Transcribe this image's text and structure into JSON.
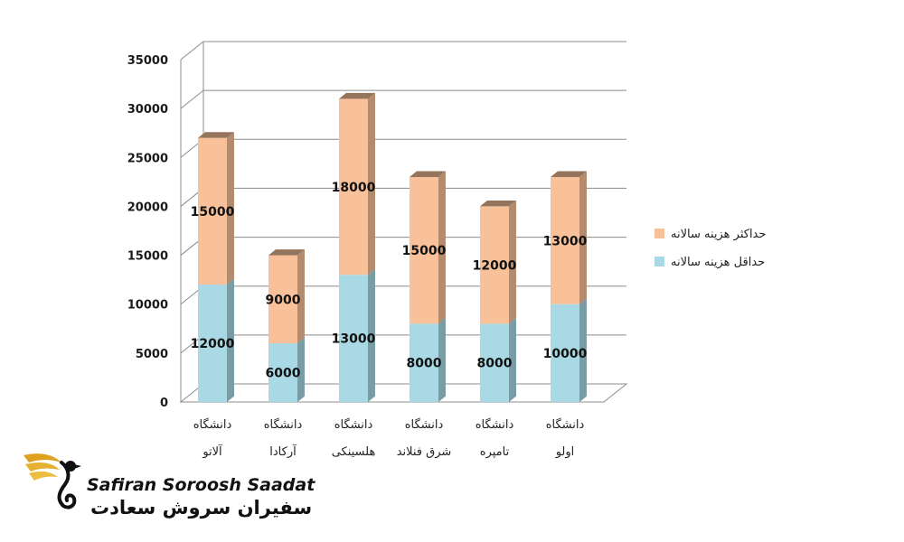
{
  "colors": {
    "min_series": "#a9d9e4",
    "max_series": "#f8c19a",
    "grid": "#8c8c8c",
    "brand_gold": "#e0a020"
  },
  "chart_data": {
    "type": "bar",
    "stacked": true,
    "three_d": true,
    "categories": [
      [
        "دانشگاه",
        "آلاتو"
      ],
      [
        "دانشگاه",
        "آرکادا"
      ],
      [
        "دانشگاه",
        "هلسینکی"
      ],
      [
        "دانشگاه",
        "شرق فنلاند"
      ],
      [
        "دانشگاه",
        "تامپره"
      ],
      [
        "دانشگاه",
        "اولو"
      ]
    ],
    "series": [
      {
        "name": "حداقل هزینه سالانه",
        "values": [
          12000,
          6000,
          13000,
          8000,
          8000,
          10000
        ]
      },
      {
        "name": "حداکثر هزینه سالانه",
        "values": [
          15000,
          9000,
          18000,
          15000,
          12000,
          13000
        ]
      }
    ],
    "y_ticks": [
      0,
      5000,
      10000,
      15000,
      20000,
      25000,
      30000,
      35000
    ],
    "ylim": [
      0,
      35000
    ],
    "grid": true,
    "legend_position": "right"
  },
  "logo": {
    "name_en": "Safiran Soroosh Saadat",
    "name_fa": "سفیران سروش سعادت",
    "icon": "swan-wing-logo-icon"
  }
}
